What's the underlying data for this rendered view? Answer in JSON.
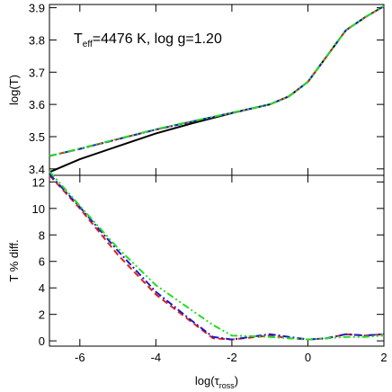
{
  "chart_data": [
    {
      "type": "line",
      "ylabel": "log(T)",
      "annotation": [
        "T",
        "eff",
        "=4476 K, log g=1.20"
      ],
      "xlim": [
        -6.8,
        2
      ],
      "ylim": [
        3.38,
        3.91
      ],
      "yticks": [
        3.4,
        3.5,
        3.6,
        3.7,
        3.8,
        3.9
      ],
      "x": [
        -6.8,
        -6,
        -5,
        -4,
        -3,
        -2,
        -1,
        -0.5,
        0,
        0.5,
        1,
        1.5,
        2
      ],
      "series": [
        {
          "color": "#000000",
          "dash": "solid",
          "values": [
            3.39,
            3.43,
            3.47,
            3.51,
            3.543,
            3.573,
            3.6,
            3.625,
            3.67,
            3.75,
            3.83,
            3.87,
            3.905
          ]
        },
        {
          "color": "#e0201b",
          "dash": "dashed",
          "values": [
            3.44,
            3.462,
            3.492,
            3.522,
            3.548,
            3.574,
            3.6,
            3.625,
            3.67,
            3.75,
            3.83,
            3.87,
            3.905
          ]
        },
        {
          "color": "#1a1acc",
          "dash": "dashdot",
          "values": [
            3.44,
            3.462,
            3.492,
            3.522,
            3.548,
            3.574,
            3.6,
            3.625,
            3.67,
            3.75,
            3.83,
            3.87,
            3.905
          ]
        },
        {
          "color": "#22dd22",
          "dash": "dashdotdot",
          "values": [
            3.44,
            3.463,
            3.493,
            3.523,
            3.549,
            3.574,
            3.6,
            3.625,
            3.67,
            3.75,
            3.83,
            3.87,
            3.905
          ]
        }
      ]
    },
    {
      "type": "line",
      "ylabel": "T % diff.",
      "xlabel": [
        "log(τ",
        "ross",
        ")"
      ],
      "xlim": [
        -6.8,
        2
      ],
      "ylim": [
        -0.4,
        12.5
      ],
      "yticks": [
        0,
        2,
        4,
        6,
        8,
        10,
        12
      ],
      "xticks": [
        -6,
        -4,
        -2,
        0,
        2
      ],
      "x": [
        -6.8,
        -6,
        -5,
        -4,
        -3,
        -2.5,
        -2,
        -1,
        -0.5,
        0,
        0.5,
        1,
        1.5,
        2
      ],
      "series": [
        {
          "color": "#e0201b",
          "dash": "dashed",
          "values": [
            12.5,
            10,
            6.5,
            3.5,
            1.3,
            0.2,
            0.1,
            0.4,
            0.2,
            0.1,
            0.2,
            0.5,
            0.4,
            0.5
          ]
        },
        {
          "color": "#1a1acc",
          "dash": "dashdot",
          "values": [
            12.6,
            10.1,
            6.8,
            3.7,
            1.4,
            0.3,
            0.1,
            0.5,
            0.3,
            0.1,
            0.2,
            0.5,
            0.4,
            0.5
          ]
        },
        {
          "color": "#22dd22",
          "dash": "dashdotdot",
          "values": [
            12.8,
            10.2,
            7,
            4.2,
            2.2,
            1.2,
            0.4,
            0.3,
            0.2,
            0.1,
            0.2,
            0.3,
            0.3,
            0.4
          ]
        }
      ]
    }
  ]
}
